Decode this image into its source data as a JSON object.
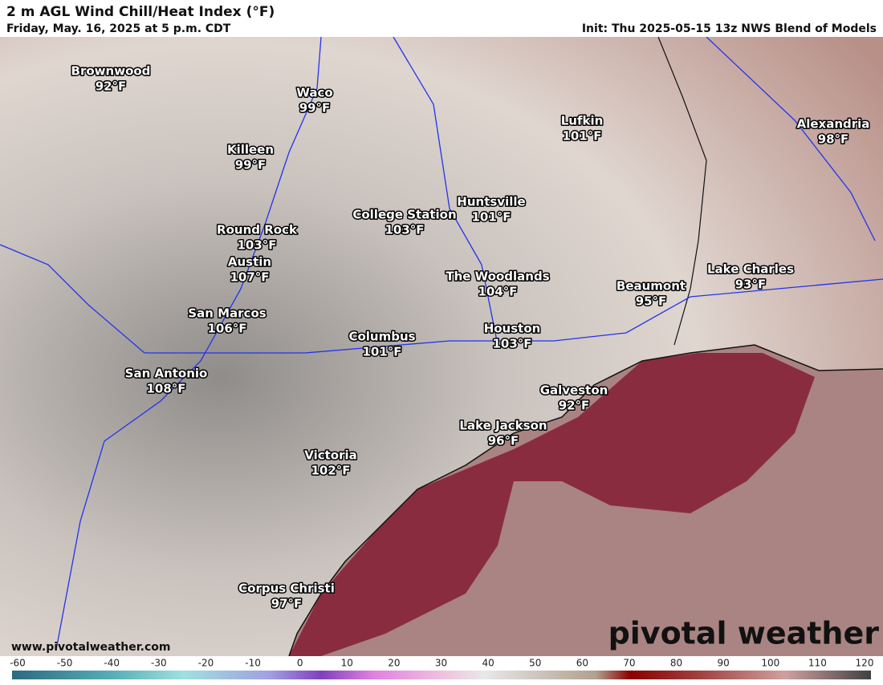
{
  "header": {
    "title": "2 m AGL Wind Chill/Heat Index (°F)",
    "valid": "Friday, May. 16, 2025 at 5 p.m. CDT",
    "init": "Init: Thu 2025-05-15 13z NWS Blend of Models"
  },
  "cities": [
    {
      "name": "Brownwood",
      "value": "92°F"
    },
    {
      "name": "Waco",
      "value": "99°F"
    },
    {
      "name": "Killeen",
      "value": "99°F"
    },
    {
      "name": "Lufkin",
      "value": "101°F"
    },
    {
      "name": "Alexandria",
      "value": "98°F"
    },
    {
      "name": "Huntsville",
      "value": "101°F"
    },
    {
      "name": "College Station",
      "value": "103°F"
    },
    {
      "name": "Round Rock",
      "value": "103°F"
    },
    {
      "name": "Austin",
      "value": "107°F"
    },
    {
      "name": "The Woodlands",
      "value": "104°F"
    },
    {
      "name": "Beaumont",
      "value": "95°F"
    },
    {
      "name": "Lake Charles",
      "value": "93°F"
    },
    {
      "name": "San Marcos",
      "value": "106°F"
    },
    {
      "name": "Columbus",
      "value": "101°F"
    },
    {
      "name": "Houston",
      "value": "103°F"
    },
    {
      "name": "San Antonio",
      "value": "108°F"
    },
    {
      "name": "Galveston",
      "value": "92°F"
    },
    {
      "name": "Lake Jackson",
      "value": "96°F"
    },
    {
      "name": "Victoria",
      "value": "102°F"
    },
    {
      "name": "Corpus Christi",
      "value": "97°F"
    }
  ],
  "footer": {
    "url": "www.pivotalweather.com",
    "brand": "pivotal weather"
  },
  "colorbar": {
    "ticks": [
      -60,
      -50,
      -40,
      -30,
      -20,
      -10,
      0,
      10,
      20,
      30,
      40,
      50,
      60,
      70,
      80,
      90,
      100,
      110,
      120
    ]
  }
}
